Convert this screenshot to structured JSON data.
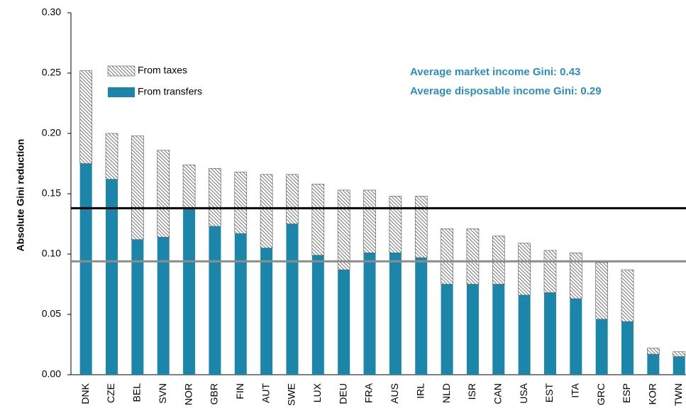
{
  "chart_data": {
    "type": "stacked_bar",
    "y_label": "Absolute Gini reduction",
    "annotations": [
      "Average market  income Gini: 0.43",
      "Average disposable  income Gini: 0.29"
    ],
    "categories": [
      "DNK",
      "CZE",
      "BEL",
      "SVN",
      "NOR",
      "GBR",
      "FIN",
      "AUT",
      "SWE",
      "LUX",
      "DEU",
      "FRA",
      "AUS",
      "IRL",
      "NLD",
      "ISR",
      "CAN",
      "USA",
      "EST",
      "ITA",
      "GRC",
      "ESP",
      "KOR",
      "TWN"
    ],
    "series": [
      {
        "name": "From transfers",
        "color": "#1b86aa",
        "values": [
          0.175,
          0.162,
          0.112,
          0.114,
          0.138,
          0.123,
          0.117,
          0.105,
          0.125,
          0.099,
          0.087,
          0.101,
          0.101,
          0.097,
          0.075,
          0.075,
          0.075,
          0.066,
          0.068,
          0.063,
          0.046,
          0.044,
          0.017,
          0.015
        ]
      },
      {
        "name": "From taxes",
        "color": "#777777",
        "hatch": true,
        "values": [
          0.077,
          0.038,
          0.086,
          0.072,
          0.036,
          0.048,
          0.051,
          0.061,
          0.041,
          0.059,
          0.066,
          0.052,
          0.047,
          0.051,
          0.046,
          0.046,
          0.04,
          0.043,
          0.035,
          0.038,
          0.047,
          0.043,
          0.005,
          0.004
        ]
      }
    ],
    "reference_lines": [
      {
        "value": 0.138,
        "color": "#000000"
      },
      {
        "value": 0.094,
        "color": "#8c8c8c"
      }
    ],
    "ylim": [
      0,
      0.3
    ],
    "yticks": [
      {
        "value": 0,
        "label": "0.00"
      },
      0.05,
      {
        "value": 0.1,
        "label": "0.10"
      },
      0.15,
      {
        "value": 0.2,
        "label": "0.20"
      },
      0.25,
      {
        "value": 0.3,
        "label": "0.30"
      }
    ]
  }
}
